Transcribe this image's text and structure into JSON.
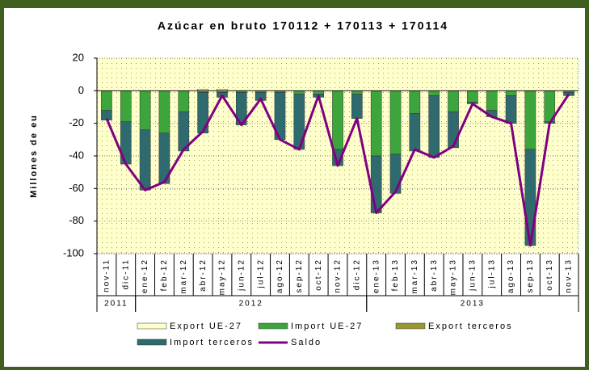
{
  "chart_data": {
    "type": "bar",
    "title": "Azúcar en bruto 170112 + 170113 + 170114",
    "y_label": "Millones de eu",
    "categories": [
      "nov-11",
      "dic-11",
      "ene-12",
      "feb-12",
      "mar-12",
      "abr-12",
      "may-12",
      "jun-12",
      "jul-12",
      "ago-12",
      "sep-12",
      "oct-12",
      "nov-12",
      "dic-12",
      "ene-13",
      "feb-13",
      "mar-13",
      "abr-13",
      "may-13",
      "jun-13",
      "jul-13",
      "ago-13",
      "sep-13",
      "oct-13",
      "nov-13"
    ],
    "year_groups": [
      {
        "label": "2011",
        "count": 2
      },
      {
        "label": "2012",
        "count": 12
      },
      {
        "label": "2013",
        "count": 11
      }
    ],
    "series": [
      {
        "name": "Export UE-27",
        "color": "#ffffcc",
        "values": [
          0,
          0,
          0,
          0,
          0,
          1,
          1,
          0,
          0,
          0,
          0,
          0,
          0,
          0,
          0,
          0,
          0,
          0,
          0,
          0,
          0,
          0,
          0,
          0,
          0
        ]
      },
      {
        "name": "Import UE-27",
        "color": "#3ca63c",
        "values": [
          -12,
          -19,
          -24,
          -26,
          -13,
          -1,
          -1,
          -1,
          -1,
          -1,
          -2,
          -2,
          -36,
          -2,
          -40,
          -39,
          -14,
          -3,
          -13,
          -7,
          -12,
          -3,
          -36,
          -19,
          -1
        ]
      },
      {
        "name": "Export terceros",
        "color": "#999933",
        "values": [
          0,
          0,
          0,
          0,
          0,
          0,
          0,
          0,
          0,
          0,
          0,
          0,
          0,
          0,
          0,
          0,
          0,
          0,
          0,
          0,
          0,
          0,
          0,
          0,
          0
        ]
      },
      {
        "name": "Import terceros",
        "color": "#2f6b6e",
        "values": [
          -6,
          -26,
          -37,
          -31,
          -24,
          -25,
          -3,
          -20,
          -5,
          -29,
          -34,
          -2,
          -10,
          -15,
          -35,
          -24,
          -23,
          -38,
          -22,
          -1,
          -4,
          -17,
          -59,
          -1,
          -2
        ]
      },
      {
        "name": "Saldo",
        "type": "line",
        "color": "#800080",
        "values": [
          -17,
          -45,
          -61,
          -56,
          -36,
          -25,
          -3,
          -21,
          -5,
          -30,
          -36,
          -3,
          -46,
          -17,
          -75,
          -62,
          -36,
          -41,
          -34,
          -8,
          -16,
          -20,
          -95,
          -20,
          -2
        ]
      }
    ],
    "ylim": [
      -100,
      20
    ],
    "yticks": [
      -100,
      -80,
      -60,
      -40,
      -20,
      0,
      20
    ],
    "grid": true
  }
}
